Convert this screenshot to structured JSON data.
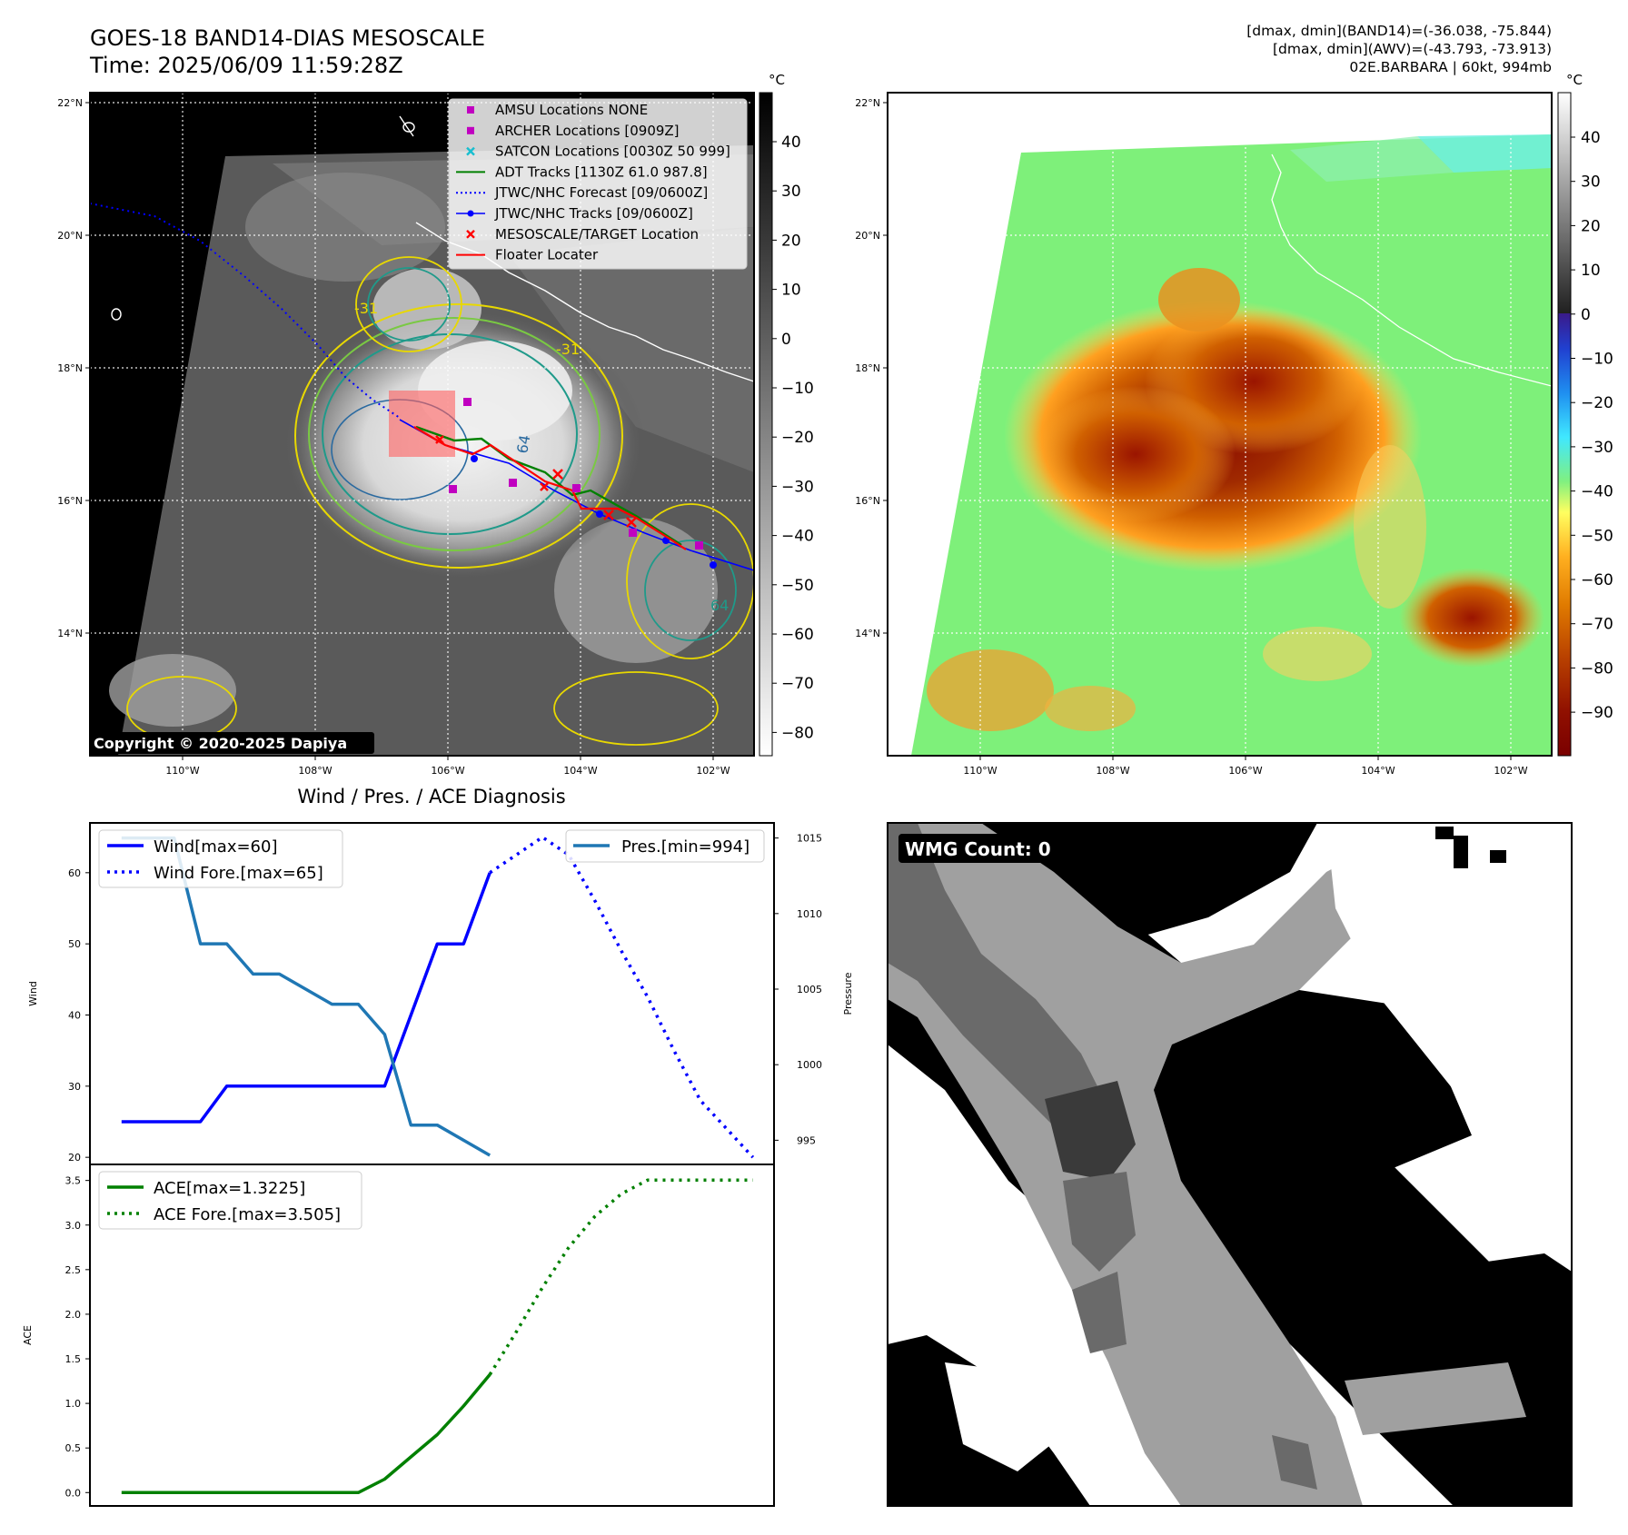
{
  "header": {
    "title": "GOES-18 BAND14-DIAS MESOSCALE",
    "time": "Time: 2025/06/09 11:59:28Z",
    "stats_band14": "[dmax, dmin](BAND14)=(-36.038, -75.844)",
    "stats_awv": "[dmax, dmin](AWV)=(-43.793, -73.913)",
    "storm": "02E.BARBARA | 60kt, 994mb"
  },
  "map_axes": {
    "lat_labels": [
      "22°N",
      "20°N",
      "18°N",
      "16°N",
      "14°N"
    ],
    "lon_labels": [
      "110°W",
      "108°W",
      "106°W",
      "104°W",
      "102°W"
    ],
    "contour_labels": [
      "-31",
      "-31",
      "64",
      "64"
    ]
  },
  "copyright": "Copyright © 2020-2025 Dapiya",
  "legend": [
    {
      "label": "AMSU Locations NONE",
      "marker": "square",
      "color": "#c000c0"
    },
    {
      "label": "ARCHER Locations [0909Z]",
      "marker": "square",
      "color": "#c000c0"
    },
    {
      "label": "SATCON Locations [0030Z 50 999]",
      "marker": "x",
      "color": "#17becf"
    },
    {
      "label": "ADT Tracks [1130Z 61.0 987.8]",
      "marker": "line",
      "color": "#008000"
    },
    {
      "label": "JTWC/NHC Forecast [09/0600Z]",
      "marker": "dotted",
      "color": "#0000ff"
    },
    {
      "label": "JTWC/NHC Tracks [09/0600Z]",
      "marker": "line-dot",
      "color": "#0000ff"
    },
    {
      "label": "MESOSCALE/TARGET Location",
      "marker": "x",
      "color": "#ff0000"
    },
    {
      "label": "Floater Locater",
      "marker": "line",
      "color": "#ff0000"
    }
  ],
  "colorbar_gray": {
    "unit": "°C",
    "ticks": [
      "40",
      "30",
      "20",
      "10",
      "0",
      "−10",
      "−20",
      "−30",
      "−40",
      "−50",
      "−60",
      "−70",
      "−80"
    ]
  },
  "colorbar_color": {
    "unit": "°C",
    "ticks": [
      "40",
      "30",
      "20",
      "10",
      "0",
      "−10",
      "−20",
      "−30",
      "−40",
      "−50",
      "−60",
      "−70",
      "−80",
      "−90"
    ]
  },
  "wmg": {
    "label": "WMG Count: 0"
  },
  "chart_data": [
    {
      "type": "line",
      "title": "Wind / Pres. / ACE Diagnosis",
      "ylabel": "Wind",
      "y2label": "Pressure",
      "ylim": [
        19,
        67
      ],
      "y2lim": [
        993.4,
        1016.0
      ],
      "yticks": [
        20,
        30,
        40,
        50,
        60
      ],
      "y2ticks": [
        995,
        1000,
        1005,
        1010,
        1015
      ],
      "x": [
        0,
        1,
        2,
        3,
        4,
        5,
        6,
        7,
        8,
        9,
        10,
        11,
        12,
        13,
        14,
        15,
        16,
        17,
        18,
        19,
        20,
        21,
        22,
        23,
        24
      ],
      "xlim": [
        -1.2,
        24.8
      ],
      "series": [
        {
          "name": "Wind[max=60]",
          "axis": "left",
          "color": "#0000ff",
          "style": "solid",
          "x": [
            0,
            3,
            4,
            9,
            10,
            12,
            13,
            14
          ],
          "values": [
            25,
            25,
            30,
            30,
            30,
            50,
            50,
            60
          ]
        },
        {
          "name": "Wind Fore.[max=65]",
          "axis": "left",
          "color": "#0000ff",
          "style": "dotted",
          "x": [
            14,
            15,
            16,
            17,
            18,
            19,
            20,
            21,
            22,
            23,
            24
          ],
          "values": [
            60,
            62.5,
            65,
            62.5,
            56,
            49,
            42.5,
            35,
            28,
            24,
            20
          ]
        },
        {
          "name": "Pres.[min=994]",
          "axis": "right",
          "color": "#1f77b4",
          "style": "solid",
          "x": [
            0,
            2,
            3,
            4,
            5,
            6,
            8,
            9,
            10,
            11,
            12,
            13,
            14
          ],
          "values": [
            1015,
            1015,
            1008,
            1008,
            1006,
            1006,
            1004,
            1004,
            1002,
            996,
            996,
            995,
            994
          ]
        }
      ],
      "legend_left": [
        "Wind[max=60]",
        "Wind Fore.[max=65]"
      ],
      "legend_right": [
        "Pres.[min=994]"
      ]
    },
    {
      "type": "line",
      "ylabel": "ACE",
      "ylim": [
        -0.15,
        3.68
      ],
      "yticks": [
        0.0,
        0.5,
        1.0,
        1.5,
        2.0,
        2.5,
        3.0,
        3.5
      ],
      "ytick_labels": [
        "0.0",
        "0.5",
        "1.0",
        "1.5",
        "2.0",
        "2.5",
        "3.0",
        "3.5"
      ],
      "xlim": [
        -1.2,
        24.8
      ],
      "series": [
        {
          "name": "ACE[max=1.3225]",
          "color": "#008000",
          "style": "solid",
          "x": [
            0,
            9,
            10,
            11,
            12,
            13,
            14
          ],
          "values": [
            0,
            0,
            0.15,
            0.4,
            0.65,
            0.97,
            1.3225
          ]
        },
        {
          "name": "ACE Fore.[max=3.505]",
          "color": "#008000",
          "style": "dotted",
          "x": [
            14,
            15,
            16,
            17,
            18,
            19,
            20,
            21,
            22,
            23,
            24
          ],
          "values": [
            1.3225,
            1.8,
            2.3,
            2.75,
            3.1,
            3.35,
            3.505,
            3.505,
            3.505,
            3.505,
            3.505
          ]
        }
      ]
    }
  ]
}
